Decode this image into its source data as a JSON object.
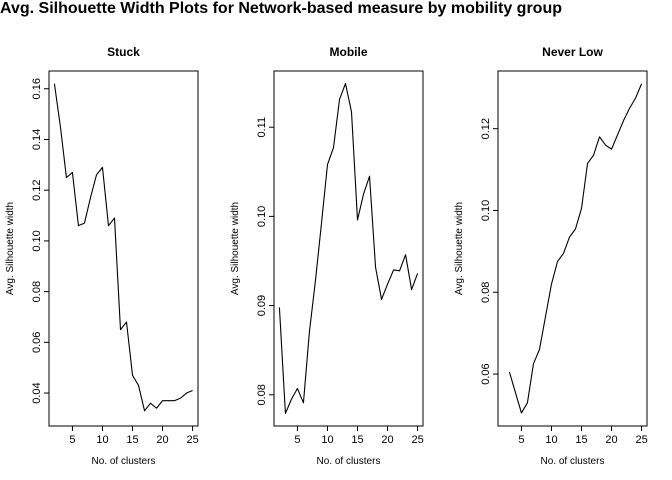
{
  "figure": {
    "title": "Avg. Silhouette Width Plots for Network-based measure by mobility group"
  },
  "chart_data": [
    {
      "type": "line",
      "title": "Stuck",
      "xlabel": "No. of clusters",
      "ylabel": "Avg. Silhouette width",
      "xlim": [
        1.1,
        25.9
      ],
      "ylim": [
        0.027,
        0.167
      ],
      "xticks": [
        5,
        10,
        15,
        20,
        25
      ],
      "yticks": [
        0.04,
        0.06,
        0.08,
        0.1,
        0.12,
        0.14,
        0.16
      ],
      "x": [
        2,
        3,
        4,
        5,
        6,
        7,
        8,
        9,
        10,
        11,
        12,
        13,
        14,
        15,
        16,
        17,
        18,
        19,
        20,
        21,
        22,
        23,
        24,
        25
      ],
      "y": [
        0.162,
        0.145,
        0.125,
        0.127,
        0.106,
        0.107,
        0.117,
        0.126,
        0.129,
        0.106,
        0.109,
        0.065,
        0.068,
        0.047,
        0.043,
        0.033,
        0.036,
        0.034,
        0.037,
        0.037,
        0.037,
        0.038,
        0.04,
        0.041
      ]
    },
    {
      "type": "line",
      "title": "Mobile",
      "xlabel": "No. of clusters",
      "ylabel": "Avg. Silhouette width",
      "xlim": [
        1.1,
        25.9
      ],
      "ylim": [
        0.0765,
        0.1163
      ],
      "xticks": [
        5,
        10,
        15,
        20,
        25
      ],
      "yticks": [
        0.08,
        0.09,
        0.1,
        0.11
      ],
      "x": [
        2,
        3,
        4,
        5,
        6,
        7,
        8,
        9,
        10,
        11,
        12,
        13,
        14,
        15,
        16,
        17,
        18,
        19,
        20,
        21,
        22,
        23,
        24,
        25
      ],
      "y": [
        0.0898,
        0.0779,
        0.0795,
        0.0807,
        0.0791,
        0.0871,
        0.0928,
        0.0992,
        0.1058,
        0.1077,
        0.1131,
        0.1149,
        0.1117,
        0.0996,
        0.1025,
        0.1045,
        0.0943,
        0.0907,
        0.0924,
        0.094,
        0.0939,
        0.0957,
        0.0918,
        0.0936
      ]
    },
    {
      "type": "line",
      "title": "Never Low",
      "xlabel": "No. of clusters",
      "ylabel": "Avg. Silhouette width",
      "xlim": [
        1.1,
        25.9
      ],
      "ylim": [
        0.0473,
        0.1341
      ],
      "xticks": [
        5,
        10,
        15,
        20,
        25
      ],
      "yticks": [
        0.06,
        0.08,
        0.1,
        0.12
      ],
      "x": [
        3,
        4,
        5,
        6,
        7,
        8,
        9,
        10,
        11,
        12,
        13,
        14,
        15,
        16,
        17,
        18,
        19,
        20,
        21,
        22,
        23,
        24,
        25
      ],
      "y": [
        0.0605,
        0.0555,
        0.0505,
        0.053,
        0.0625,
        0.066,
        0.074,
        0.082,
        0.0875,
        0.0895,
        0.0935,
        0.0955,
        0.1005,
        0.1115,
        0.1135,
        0.118,
        0.116,
        0.115,
        0.1185,
        0.122,
        0.125,
        0.1275,
        0.131
      ]
    }
  ]
}
